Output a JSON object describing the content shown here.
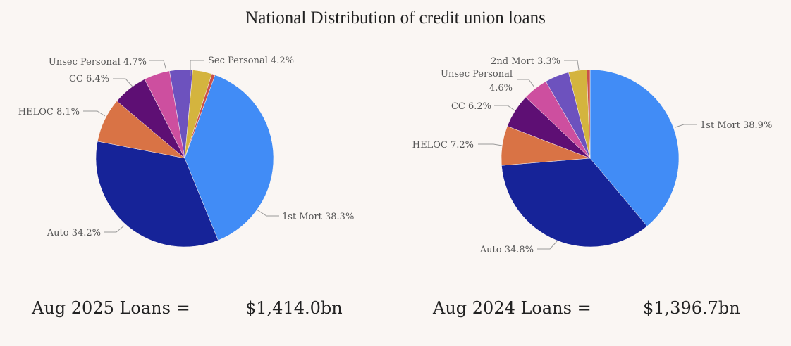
{
  "title": "National Distribution of credit union loans",
  "chart_data": [
    {
      "type": "pie",
      "title": "Aug 2025",
      "start_angle_deg": 20,
      "slices": [
        {
          "name": "1st Mort",
          "value": 38.3,
          "label": "1st Mort 38.3%",
          "color": "#418cf6"
        },
        {
          "name": "Auto",
          "value": 34.2,
          "label": "Auto 34.2%",
          "color": "#162398"
        },
        {
          "name": "HELOC",
          "value": 8.1,
          "label": "HELOC 8.1%",
          "color": "#d97345"
        },
        {
          "name": "CC",
          "value": 6.4,
          "label": "CC 6.4%",
          "color": "#5e0f74"
        },
        {
          "name": "Unsec Personal",
          "value": 4.7,
          "label": "Unsec Personal 4.7%",
          "color": "#cd4f9f"
        },
        {
          "name": "Sec Personal",
          "value": 4.2,
          "label": "Sec Personal 4.2%",
          "color": "#6d52be"
        },
        {
          "name": "",
          "value": 3.5,
          "label": null,
          "color": "#d4b43e"
        },
        {
          "name": "",
          "value": 0.6,
          "label": null,
          "color": "#c9504a"
        }
      ]
    },
    {
      "type": "pie",
      "title": "Aug 2024",
      "start_angle_deg": 0,
      "slices": [
        {
          "name": "1st Mort",
          "value": 38.9,
          "label": "1st Mort 38.9%",
          "color": "#418cf6"
        },
        {
          "name": "Auto",
          "value": 34.8,
          "label": "Auto 34.8%",
          "color": "#162398"
        },
        {
          "name": "HELOC",
          "value": 7.2,
          "label": "HELOC 7.2%",
          "color": "#d97345"
        },
        {
          "name": "CC",
          "value": 6.2,
          "label": "CC 6.2%",
          "color": "#5e0f74"
        },
        {
          "name": "Unsec Personal",
          "value": 4.6,
          "label": "Unsec Personal",
          "label2": "4.6%",
          "color": "#cd4f9f"
        },
        {
          "name": "",
          "value": 4.4,
          "label": null,
          "color": "#6d52be"
        },
        {
          "name": "2nd Mort",
          "value": 3.3,
          "label": "2nd Mort 3.3%",
          "color": "#d4b43e"
        },
        {
          "name": "",
          "value": 0.6,
          "label": null,
          "color": "#c9504a"
        }
      ]
    }
  ],
  "totals": [
    {
      "label": "Aug 2025 Loans =",
      "value": "$1,414.0bn"
    },
    {
      "label": "Aug 2024 Loans =",
      "value": "$1,396.7bn"
    }
  ]
}
